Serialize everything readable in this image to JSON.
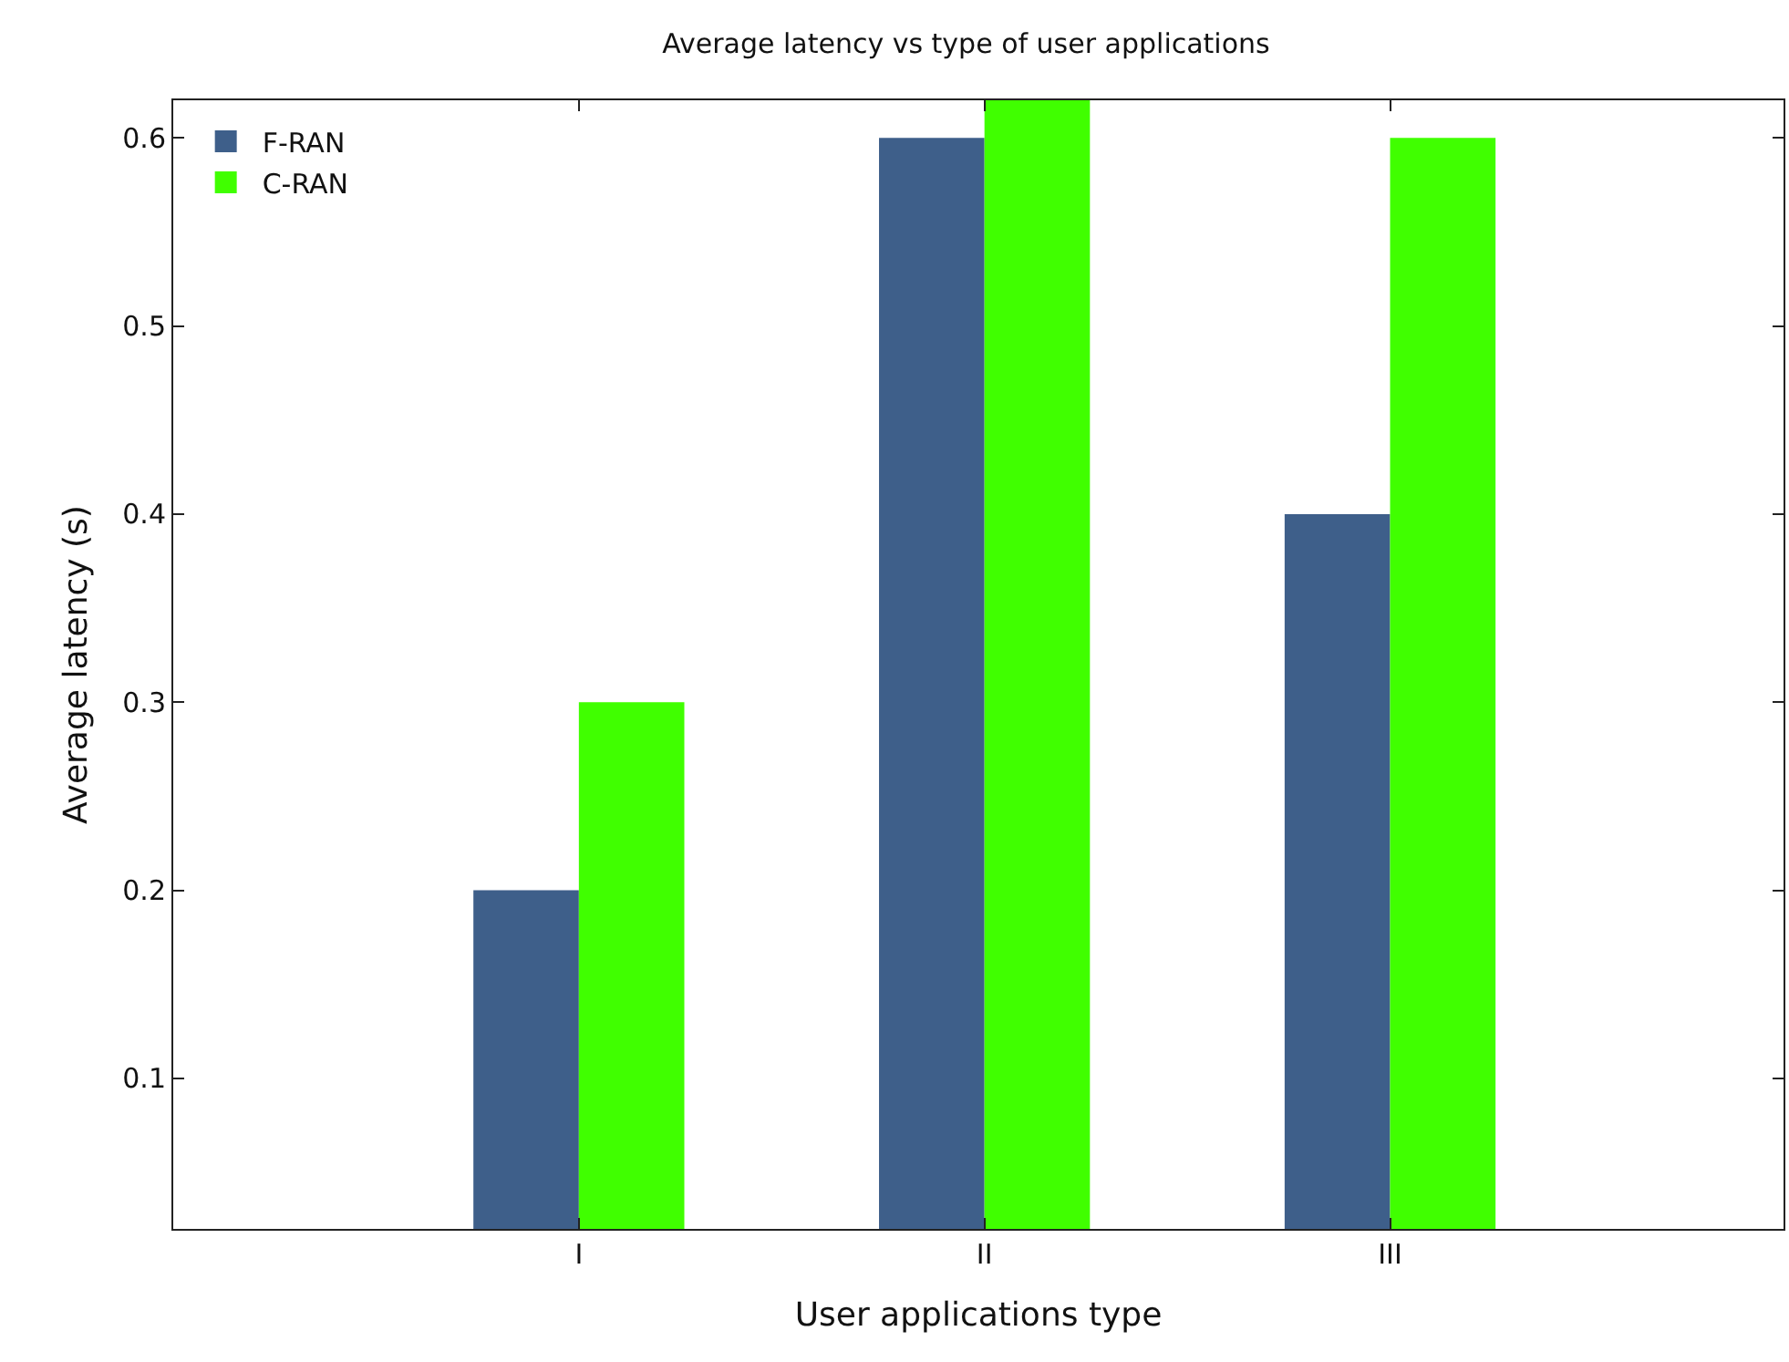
{
  "chart_data": {
    "type": "bar",
    "title": "Average latency vs type of user applications",
    "xlabel": "User applications type",
    "ylabel": "Average latency (s)",
    "categories": [
      "I",
      "II",
      "III"
    ],
    "series": [
      {
        "name": "F-RAN",
        "color": "#3e5f8a",
        "values": [
          0.2,
          0.6,
          0.4
        ]
      },
      {
        "name": "C-RAN",
        "color": "#40ff00",
        "values": [
          0.3,
          0.62,
          0.6
        ]
      }
    ],
    "ylim": [
      0.02,
      0.62
    ],
    "yticks": [
      0.1,
      0.2,
      0.3,
      0.4,
      0.5,
      0.6
    ],
    "legend": "top left"
  }
}
